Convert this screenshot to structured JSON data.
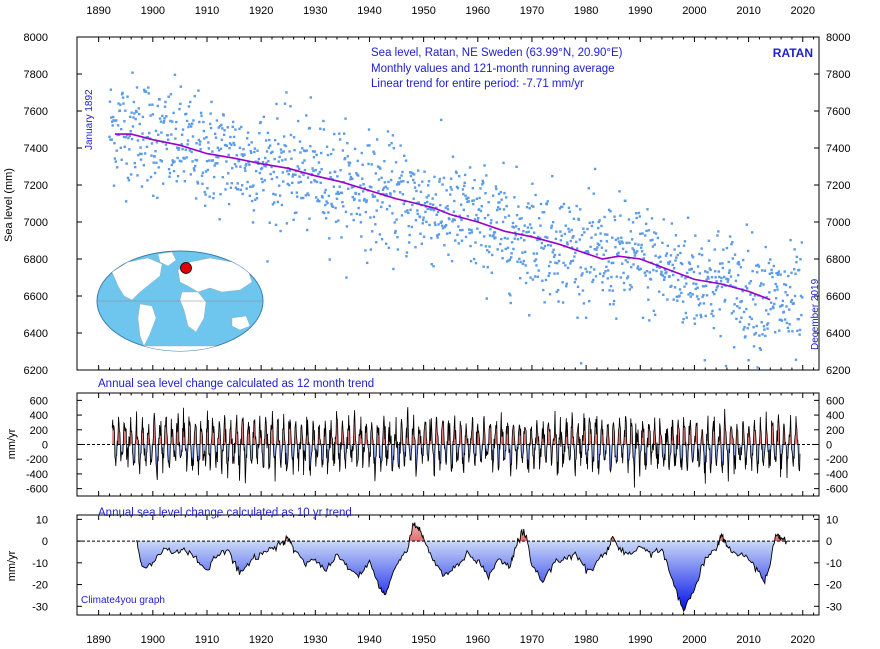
{
  "chart_data": [
    {
      "type": "scatter",
      "panel": "top",
      "title_lines": [
        "Sea level, Ratan, NE Sweden (63.99°N, 20.90°E)",
        "Monthly values and 121-month running average",
        "Linear trend for entire period: -7.71 mm/yr"
      ],
      "station_label": "RATAN",
      "start_label": "January 1892",
      "end_label": "December 2019",
      "ylabel": "Sea level (mm)",
      "xlim": [
        1886,
        2023
      ],
      "ylim": [
        6200,
        8000
      ],
      "x_ticks": [
        1890,
        1900,
        1910,
        1920,
        1930,
        1940,
        1950,
        1960,
        1970,
        1980,
        1990,
        2000,
        2010,
        2020
      ],
      "y_ticks": [
        6200,
        6400,
        6600,
        6800,
        7000,
        7200,
        7400,
        7600,
        7800,
        8000
      ],
      "series": [
        {
          "kind": "monthly-points",
          "color": "#5b9be8",
          "x_range": [
            1892.0,
            2019.92
          ],
          "trend_per_year": -7.71,
          "scatter_sd": 150
        },
        {
          "kind": "running-average",
          "color": "#9a00c8",
          "x": [
            1893,
            1896,
            1900,
            1905,
            1910,
            1915,
            1920,
            1925,
            1930,
            1935,
            1940,
            1945,
            1948,
            1952,
            1955,
            1960,
            1965,
            1970,
            1975,
            1980,
            1983,
            1986,
            1990,
            1995,
            2000,
            2005,
            2010,
            2014
          ],
          "y": [
            7475,
            7475,
            7445,
            7415,
            7370,
            7345,
            7315,
            7290,
            7250,
            7215,
            7170,
            7125,
            7105,
            7075,
            7040,
            7000,
            6950,
            6920,
            6880,
            6830,
            6800,
            6815,
            6800,
            6745,
            6690,
            6665,
            6625,
            6580
          ]
        }
      ],
      "inset": "world-map-with-ratan-marker"
    },
    {
      "type": "area",
      "panel": "middle",
      "title": "Annual sea level change calculated as 12 month trend",
      "ylabel": "mm/yr",
      "xlim": [
        1886,
        2023
      ],
      "ylim": [
        -700,
        700
      ],
      "y_ticks": [
        -600,
        -400,
        -200,
        0,
        200,
        400,
        600
      ],
      "x_range": [
        1892.5,
        2019.5
      ],
      "typical_amplitude": 300,
      "positive_color": "#e88888",
      "negative_color": "#1020e0"
    },
    {
      "type": "area",
      "panel": "bottom",
      "title": "Annual sea level change calculated as 10 yr trend",
      "ylabel": "mm/yr",
      "xlim": [
        1886,
        2023
      ],
      "ylim": [
        -34,
        12
      ],
      "y_ticks": [
        -30,
        -20,
        -10,
        0,
        10
      ],
      "x_ticks": [
        1890,
        1900,
        1910,
        1920,
        1930,
        1940,
        1950,
        1960,
        1970,
        1980,
        1990,
        2000,
        2010,
        2020
      ],
      "x": [
        1897,
        1898,
        1900,
        1902,
        1904,
        1906,
        1908,
        1910,
        1912,
        1914,
        1916,
        1918,
        1920,
        1922,
        1924,
        1925,
        1926,
        1928,
        1930,
        1932,
        1934,
        1936,
        1938,
        1940,
        1942,
        1943,
        1945,
        1947,
        1948,
        1949,
        1950,
        1952,
        1954,
        1956,
        1958,
        1960,
        1962,
        1964,
        1966,
        1967,
        1968,
        1969,
        1970,
        1972,
        1974,
        1976,
        1978,
        1980,
        1982,
        1984,
        1985,
        1986,
        1988,
        1990,
        1992,
        1994,
        1996,
        1998,
        2000,
        2002,
        2004,
        2005,
        2006,
        2008,
        2010,
        2012,
        2013,
        2014,
        2015,
        2016,
        2017
      ],
      "y": [
        0,
        -12,
        -10,
        -3,
        -6,
        -4,
        -8,
        -14,
        -6,
        -4,
        -15,
        -10,
        -6,
        -3,
        -1,
        2,
        -4,
        -10,
        -8,
        -14,
        -6,
        -12,
        -16,
        -10,
        -22,
        -24,
        -10,
        -4,
        7,
        6,
        2,
        -10,
        -16,
        -12,
        -6,
        -10,
        -16,
        -8,
        -12,
        -3,
        3,
        2,
        -12,
        -18,
        -10,
        -8,
        -6,
        -14,
        -10,
        -4,
        2,
        -4,
        -6,
        -3,
        -6,
        -4,
        -18,
        -32,
        -22,
        -8,
        -4,
        3,
        -2,
        -6,
        -8,
        -14,
        -18,
        -10,
        3,
        2,
        0
      ],
      "positive_color": "#e88888",
      "negative_color": "#1020e0",
      "credit": "Climate4you graph"
    }
  ]
}
